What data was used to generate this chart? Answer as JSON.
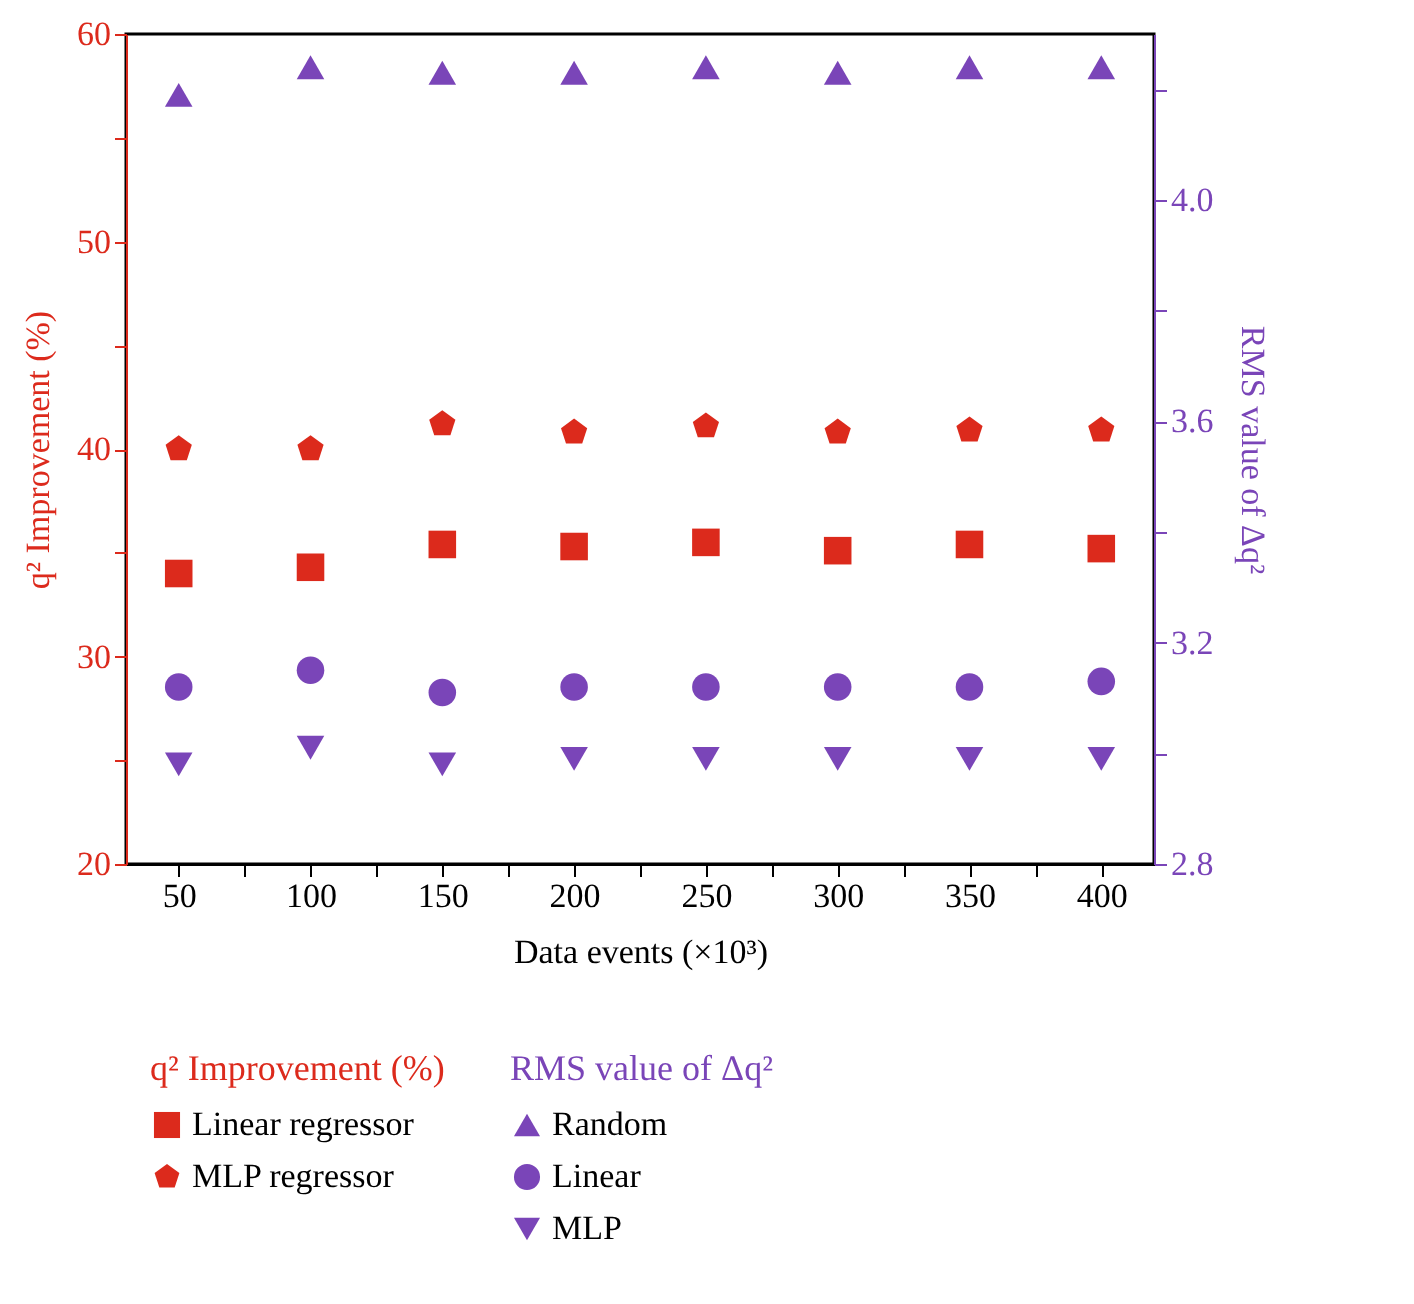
{
  "chart_data": {
    "type": "scatter",
    "xlabel": "Data events (×10³)",
    "ylabel": "q² Improvement (%)",
    "y2label": "RMS value of Δq²",
    "x": [
      50,
      100,
      150,
      200,
      250,
      300,
      350,
      400
    ],
    "xlim": [
      30,
      420
    ],
    "xticks": [
      50,
      {
        "value": 75,
        "label": null
      },
      100,
      {
        "value": 125,
        "label": null
      },
      150,
      {
        "value": 175,
        "label": null
      },
      200,
      {
        "value": 225,
        "label": null
      },
      250,
      {
        "value": 275,
        "label": null
      },
      300,
      {
        "value": 325,
        "label": null
      },
      350,
      {
        "value": 375,
        "label": null
      },
      400
    ],
    "ylim": [
      20,
      60
    ],
    "yticks": [
      20,
      {
        "value": 25,
        "label": null
      },
      30,
      {
        "value": 35,
        "label": null
      },
      40,
      {
        "value": 45,
        "label": null
      },
      50,
      {
        "value": 55,
        "label": null
      },
      60
    ],
    "y2lim": [
      2.8,
      4.3
    ],
    "y2ticks": [
      2.8,
      {
        "value": 3.0,
        "label": null
      },
      3.2,
      {
        "value": 3.4,
        "label": null
      },
      3.6,
      {
        "value": 3.8,
        "label": null
      },
      {
        "value": 4,
        "label": "4.0"
      },
      {
        "value": 4.2,
        "label": null
      }
    ],
    "legend": "bottom",
    "grid": false,
    "series": [
      {
        "name": "Linear regressor",
        "color": "#dc2a1c",
        "marker": "square",
        "values": [
          34.0,
          34.3,
          35.4,
          35.3,
          35.5,
          35.1,
          35.4,
          35.2
        ]
      },
      {
        "name": "MLP regressor",
        "color": "#dc2a1c",
        "values": [
          40.0,
          40.0,
          41.2,
          40.8,
          41.1,
          40.8,
          40.9,
          40.9
        ]
      },
      {
        "name": "Random",
        "color": "#7a45b8",
        "marker": "triangle",
        "axis": "y2",
        "values": [
          4.19,
          4.24,
          4.23,
          4.23,
          4.24,
          4.23,
          4.24,
          4.24
        ]
      },
      {
        "name": "Linear",
        "color": "#7a45b8",
        "marker": "circle",
        "axis": "y2",
        "values": [
          3.12,
          3.15,
          3.11,
          3.12,
          3.12,
          3.12,
          3.12,
          3.13
        ]
      },
      {
        "name": "MLP",
        "color": "#7a45b8",
        "marker": "triangle-down",
        "axis": "y2",
        "values": [
          2.98,
          3.01,
          2.98,
          2.99,
          2.99,
          2.99,
          2.99,
          2.99
        ]
      }
    ]
  }
}
